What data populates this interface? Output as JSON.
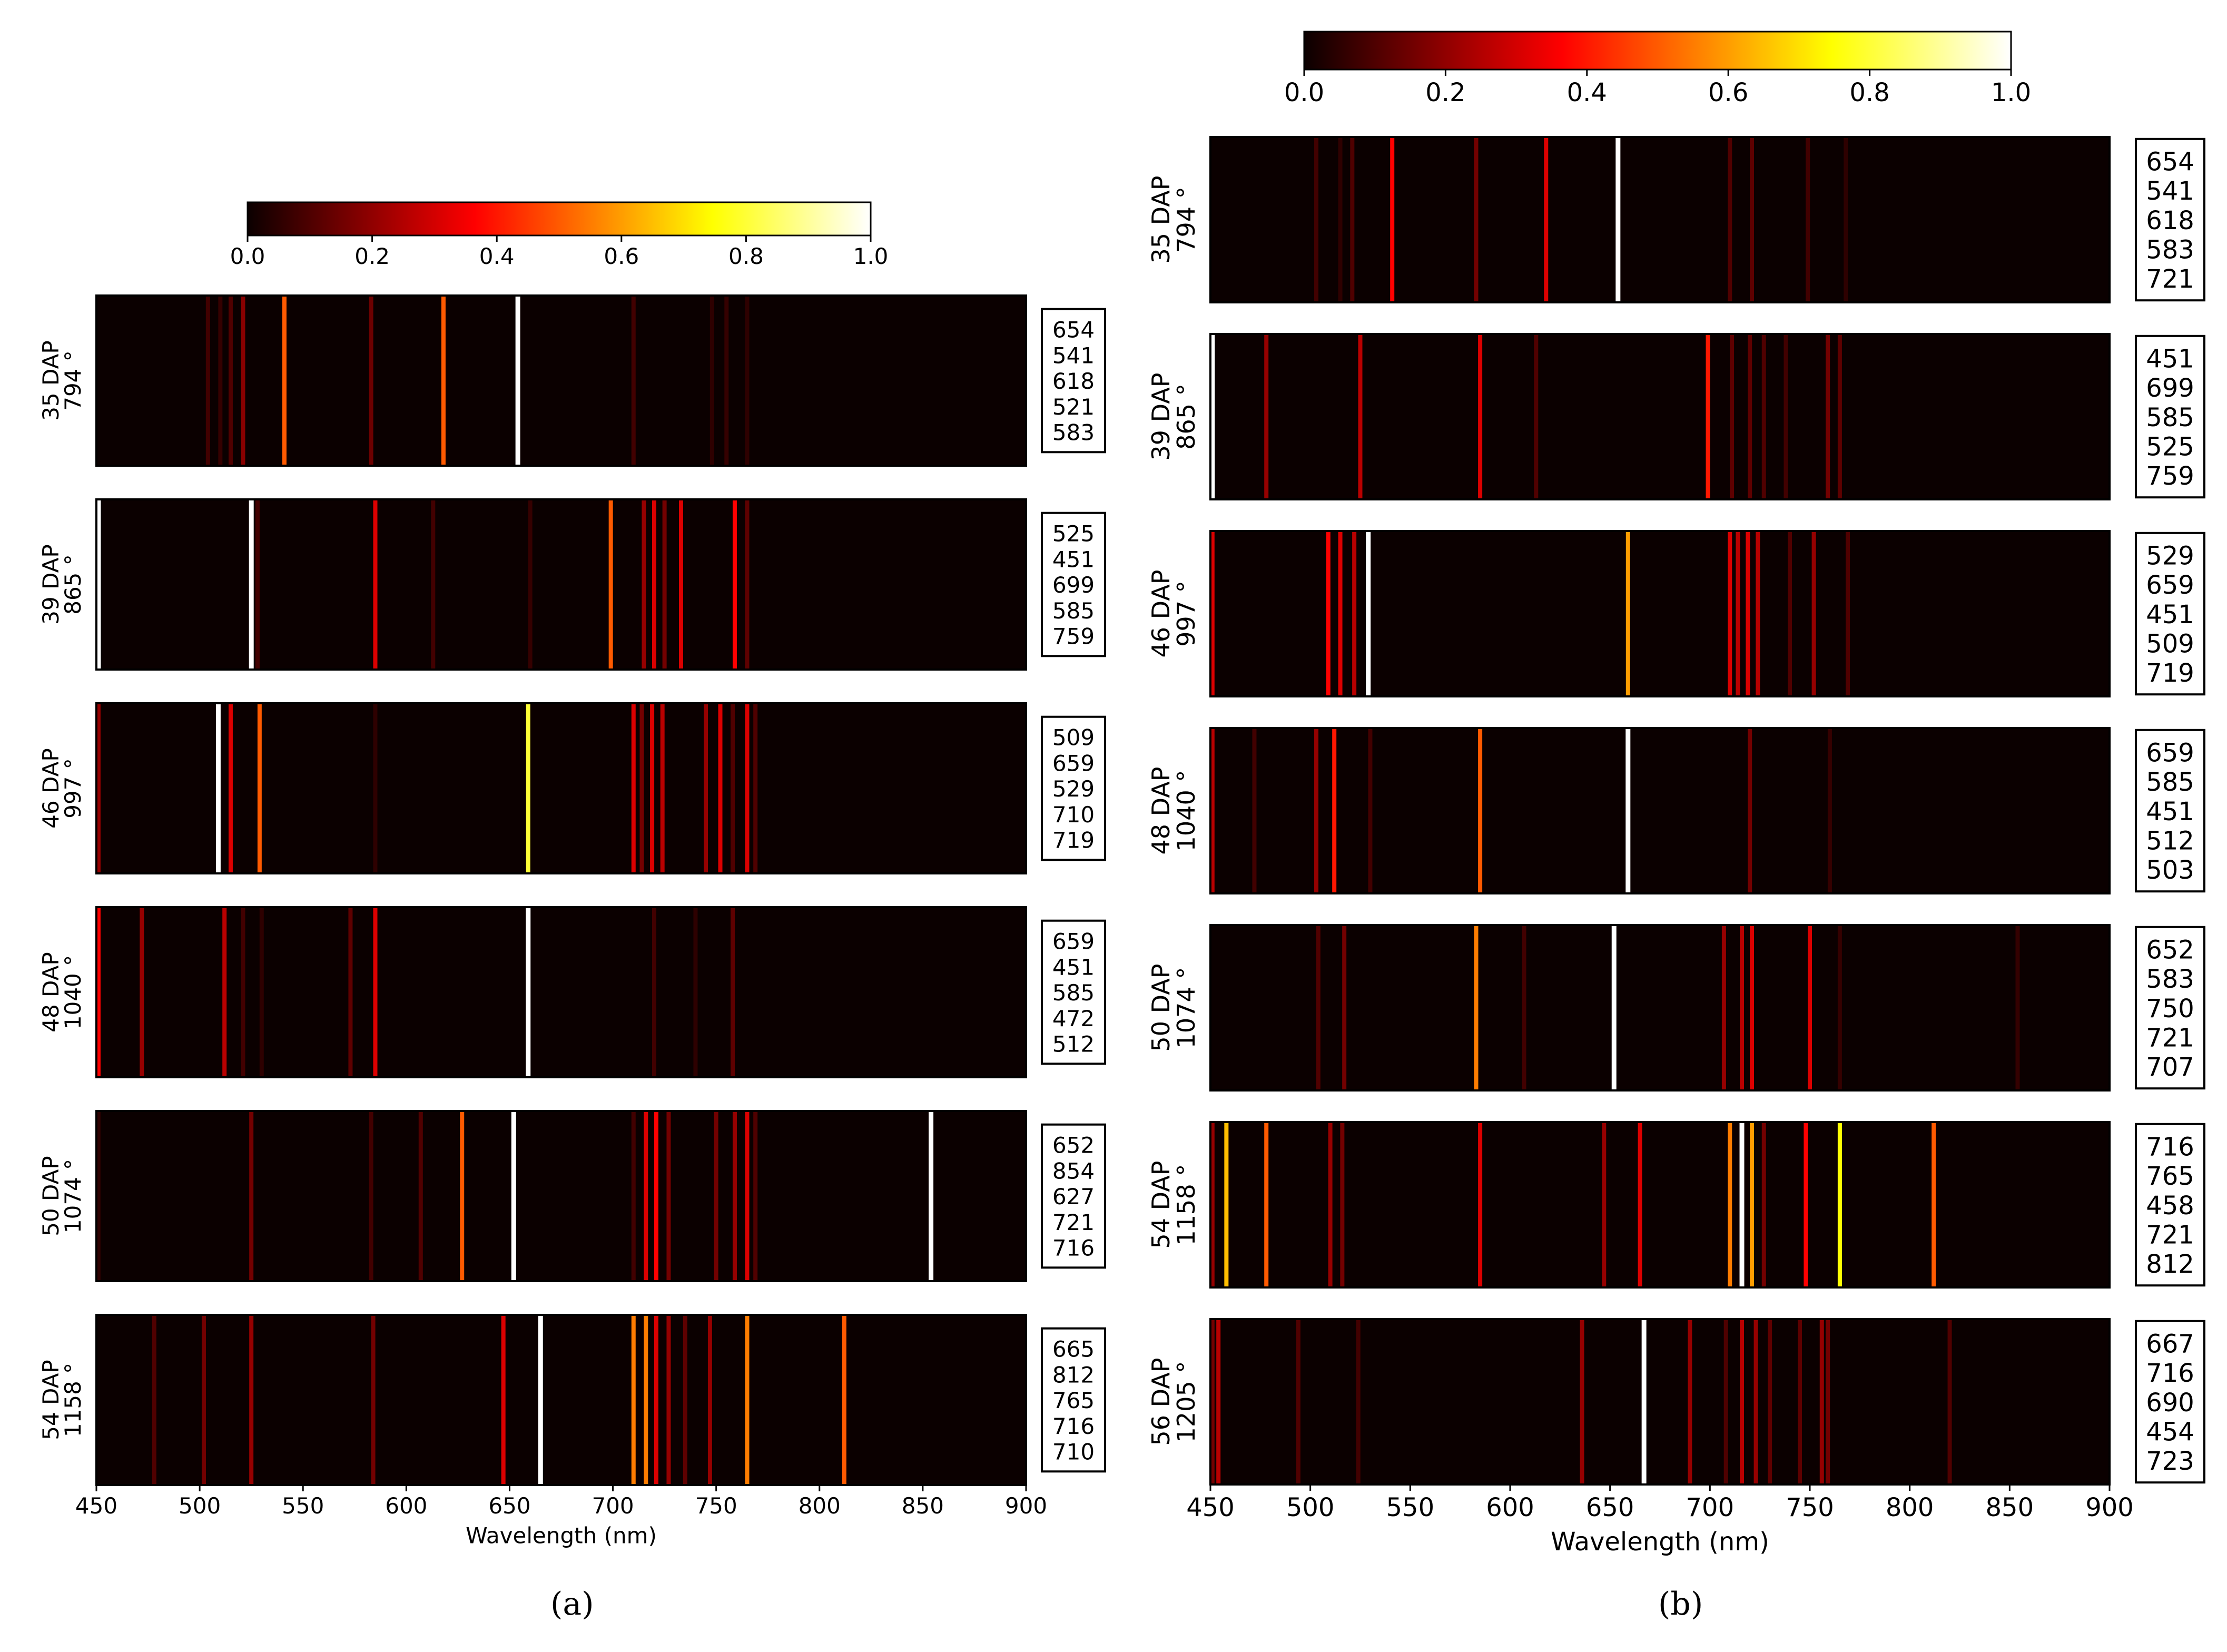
{
  "captions": {
    "a": "(a)",
    "b": "(b)"
  },
  "chart_data": [
    {
      "type": "heatmap",
      "panel": "a",
      "xlabel": "Wavelength (nm)",
      "xlim": [
        450,
        900
      ],
      "xticks": [
        450,
        500,
        550,
        600,
        650,
        700,
        750,
        800,
        850,
        900
      ],
      "colorbar": {
        "range": [
          0.0,
          1.0
        ],
        "ticks": [
          "0.0",
          "0.2",
          "0.4",
          "0.6",
          "0.8",
          "1.0"
        ]
      },
      "rows": [
        {
          "label": "35 DAP",
          "sublabel": "794 °",
          "top5": [
            "654",
            "541",
            "618",
            "521",
            "583"
          ],
          "bands": [
            [
              504,
              0.08
            ],
            [
              510,
              0.06
            ],
            [
              515,
              0.1
            ],
            [
              521,
              0.18
            ],
            [
              541,
              0.5
            ],
            [
              583,
              0.14
            ],
            [
              618,
              0.5
            ],
            [
              654,
              1.0
            ],
            [
              710,
              0.08
            ],
            [
              748,
              0.05
            ],
            [
              755,
              0.06
            ],
            [
              765,
              0.05
            ]
          ]
        },
        {
          "label": "39 DAP",
          "sublabel": "865 °",
          "top5": [
            "525",
            "451",
            "699",
            "585",
            "759"
          ],
          "bands": [
            [
              451,
              1.0
            ],
            [
              525,
              1.0
            ],
            [
              528,
              0.08
            ],
            [
              585,
              0.3
            ],
            [
              613,
              0.08
            ],
            [
              660,
              0.06
            ],
            [
              699,
              0.5
            ],
            [
              715,
              0.2
            ],
            [
              720,
              0.3
            ],
            [
              725,
              0.15
            ],
            [
              733,
              0.3
            ],
            [
              759,
              0.35
            ],
            [
              765,
              0.12
            ]
          ]
        },
        {
          "label": "46 DAP",
          "sublabel": "997 °",
          "top5": [
            "509",
            "659",
            "529",
            "710",
            "719"
          ],
          "bands": [
            [
              451,
              0.2
            ],
            [
              509,
              1.0
            ],
            [
              515,
              0.3
            ],
            [
              529,
              0.5
            ],
            [
              585,
              0.05
            ],
            [
              659,
              0.8
            ],
            [
              710,
              0.3
            ],
            [
              714,
              0.15
            ],
            [
              719,
              0.3
            ],
            [
              724,
              0.25
            ],
            [
              745,
              0.2
            ],
            [
              752,
              0.3
            ],
            [
              758,
              0.1
            ],
            [
              765,
              0.3
            ],
            [
              769,
              0.1
            ]
          ]
        },
        {
          "label": "48 DAP",
          "sublabel": "1040 °",
          "top5": [
            "659",
            "451",
            "585",
            "472",
            "512"
          ],
          "bands": [
            [
              451,
              0.35
            ],
            [
              472,
              0.2
            ],
            [
              512,
              0.25
            ],
            [
              521,
              0.08
            ],
            [
              530,
              0.05
            ],
            [
              573,
              0.12
            ],
            [
              585,
              0.3
            ],
            [
              659,
              1.0
            ],
            [
              720,
              0.08
            ],
            [
              740,
              0.05
            ],
            [
              758,
              0.12
            ]
          ]
        },
        {
          "label": "50 DAP",
          "sublabel": "1074 °",
          "top5": [
            "652",
            "854",
            "627",
            "721",
            "716"
          ],
          "bands": [
            [
              451,
              0.05
            ],
            [
              525,
              0.15
            ],
            [
              583,
              0.08
            ],
            [
              607,
              0.1
            ],
            [
              627,
              0.5
            ],
            [
              652,
              1.0
            ],
            [
              710,
              0.08
            ],
            [
              716,
              0.3
            ],
            [
              721,
              0.35
            ],
            [
              727,
              0.15
            ],
            [
              750,
              0.15
            ],
            [
              759,
              0.2
            ],
            [
              765,
              0.3
            ],
            [
              769,
              0.1
            ],
            [
              854,
              1.0
            ]
          ]
        },
        {
          "label": "54 DAP",
          "sublabel": "1158 °",
          "top5": [
            "665",
            "812",
            "765",
            "716",
            "710"
          ],
          "bands": [
            [
              478,
              0.1
            ],
            [
              502,
              0.15
            ],
            [
              525,
              0.2
            ],
            [
              584,
              0.15
            ],
            [
              647,
              0.3
            ],
            [
              665,
              1.0
            ],
            [
              710,
              0.55
            ],
            [
              716,
              0.55
            ],
            [
              721,
              0.3
            ],
            [
              727,
              0.2
            ],
            [
              735,
              0.12
            ],
            [
              747,
              0.2
            ],
            [
              765,
              0.55
            ],
            [
              812,
              0.5
            ]
          ]
        }
      ]
    },
    {
      "type": "heatmap",
      "panel": "b",
      "xlabel": "Wavelength (nm)",
      "xlim": [
        450,
        900
      ],
      "xticks": [
        450,
        500,
        550,
        600,
        650,
        700,
        750,
        800,
        850,
        900
      ],
      "colorbar": {
        "range": [
          0.0,
          1.0
        ],
        "ticks": [
          "0.0",
          "0.2",
          "0.4",
          "0.6",
          "0.8",
          "1.0"
        ]
      },
      "rows": [
        {
          "label": "35 DAP",
          "sublabel": "794 °",
          "top5": [
            "654",
            "541",
            "618",
            "583",
            "721"
          ],
          "bands": [
            [
              503,
              0.08
            ],
            [
              515,
              0.05
            ],
            [
              521,
              0.1
            ],
            [
              541,
              0.35
            ],
            [
              583,
              0.15
            ],
            [
              618,
              0.3
            ],
            [
              654,
              1.0
            ],
            [
              710,
              0.1
            ],
            [
              721,
              0.12
            ],
            [
              749,
              0.08
            ],
            [
              768,
              0.05
            ]
          ]
        },
        {
          "label": "39 DAP",
          "sublabel": "865 °",
          "top5": [
            "451",
            "699",
            "585",
            "525",
            "759"
          ],
          "bands": [
            [
              451,
              1.0
            ],
            [
              478,
              0.2
            ],
            [
              525,
              0.25
            ],
            [
              585,
              0.3
            ],
            [
              613,
              0.1
            ],
            [
              699,
              0.4
            ],
            [
              711,
              0.12
            ],
            [
              720,
              0.12
            ],
            [
              727,
              0.1
            ],
            [
              738,
              0.08
            ],
            [
              759,
              0.15
            ],
            [
              765,
              0.12
            ]
          ]
        },
        {
          "label": "46 DAP",
          "sublabel": "997 °",
          "top5": [
            "529",
            "659",
            "451",
            "509",
            "719"
          ],
          "bands": [
            [
              451,
              0.3
            ],
            [
              509,
              0.35
            ],
            [
              515,
              0.3
            ],
            [
              522,
              0.25
            ],
            [
              529,
              1.0
            ],
            [
              659,
              0.6
            ],
            [
              710,
              0.3
            ],
            [
              714,
              0.25
            ],
            [
              719,
              0.3
            ],
            [
              724,
              0.25
            ],
            [
              740,
              0.1
            ],
            [
              752,
              0.2
            ],
            [
              769,
              0.1
            ]
          ]
        },
        {
          "label": "48 DAP",
          "sublabel": "1040 °",
          "top5": [
            "659",
            "585",
            "451",
            "512",
            "503"
          ],
          "bands": [
            [
              451,
              0.25
            ],
            [
              472,
              0.08
            ],
            [
              503,
              0.2
            ],
            [
              512,
              0.4
            ],
            [
              530,
              0.08
            ],
            [
              585,
              0.5
            ],
            [
              659,
              1.0
            ],
            [
              720,
              0.15
            ],
            [
              760,
              0.06
            ]
          ]
        },
        {
          "label": "50 DAP",
          "sublabel": "1074 °",
          "top5": [
            "652",
            "583",
            "750",
            "721",
            "707"
          ],
          "bands": [
            [
              504,
              0.1
            ],
            [
              517,
              0.15
            ],
            [
              583,
              0.55
            ],
            [
              607,
              0.08
            ],
            [
              652,
              1.0
            ],
            [
              707,
              0.2
            ],
            [
              716,
              0.25
            ],
            [
              721,
              0.3
            ],
            [
              750,
              0.3
            ],
            [
              765,
              0.06
            ],
            [
              854,
              0.06
            ]
          ]
        },
        {
          "label": "54 DAP",
          "sublabel": "1158 °",
          "top5": [
            "716",
            "765",
            "458",
            "721",
            "812"
          ],
          "bands": [
            [
              451,
              0.2
            ],
            [
              458,
              0.65
            ],
            [
              478,
              0.5
            ],
            [
              510,
              0.2
            ],
            [
              516,
              0.15
            ],
            [
              585,
              0.3
            ],
            [
              647,
              0.2
            ],
            [
              665,
              0.3
            ],
            [
              710,
              0.55
            ],
            [
              716,
              1.0
            ],
            [
              721,
              0.6
            ],
            [
              727,
              0.15
            ],
            [
              748,
              0.35
            ],
            [
              765,
              0.75
            ],
            [
              812,
              0.5
            ]
          ]
        },
        {
          "label": "56 DAP",
          "sublabel": "1205 °",
          "top5": [
            "667",
            "716",
            "690",
            "454",
            "723"
          ],
          "bands": [
            [
              451,
              0.15
            ],
            [
              454,
              0.25
            ],
            [
              494,
              0.1
            ],
            [
              524,
              0.08
            ],
            [
              636,
              0.2
            ],
            [
              667,
              1.0
            ],
            [
              690,
              0.2
            ],
            [
              708,
              0.1
            ],
            [
              716,
              0.25
            ],
            [
              723,
              0.2
            ],
            [
              730,
              0.12
            ],
            [
              745,
              0.12
            ],
            [
              756,
              0.2
            ],
            [
              759,
              0.15
            ],
            [
              820,
              0.1
            ]
          ]
        }
      ]
    }
  ]
}
